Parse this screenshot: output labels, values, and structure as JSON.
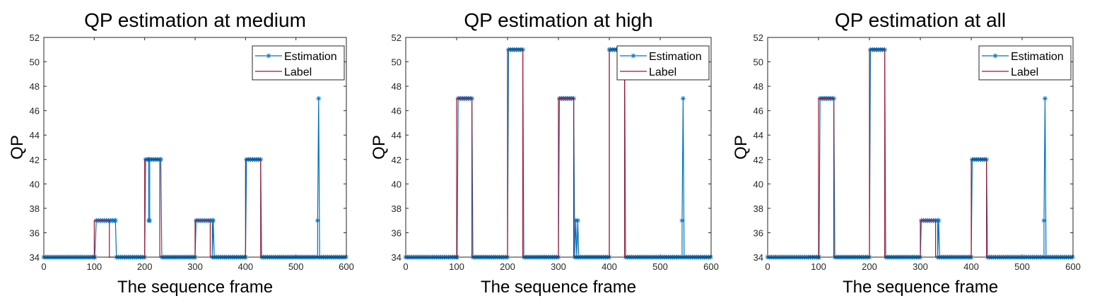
{
  "colors": {
    "estimation": "#0072BD",
    "label": "#A2142F",
    "axis": "#262626"
  },
  "chart_data": [
    {
      "type": "line",
      "title": "QP estimation at medium",
      "xlabel": "The sequence frame",
      "ylabel": "QP",
      "xlim": [
        0,
        600
      ],
      "ylim": [
        34,
        52
      ],
      "xticks": [
        "0",
        "100",
        "200",
        "300",
        "400",
        "500",
        "600"
      ],
      "yticks": [
        "34",
        "36",
        "38",
        "40",
        "42",
        "44",
        "46",
        "48",
        "50",
        "52"
      ],
      "legend_position": "top-right",
      "legend": [
        "Estimation",
        "Label"
      ],
      "series": [
        {
          "name": "Label",
          "style": "line",
          "x": [
            0,
            100,
            100,
            130,
            130,
            200,
            200,
            230,
            230,
            300,
            300,
            330,
            330,
            400,
            400,
            430,
            430,
            600
          ],
          "y": [
            34,
            34,
            37,
            37,
            34,
            34,
            42,
            42,
            34,
            34,
            37,
            37,
            34,
            34,
            42,
            42,
            34,
            34
          ]
        },
        {
          "name": "Estimation",
          "style": "line-star",
          "x": [
            0,
            101,
            104,
            142,
            144,
            200,
            202,
            208,
            208,
            210,
            210,
            232,
            234,
            300,
            302,
            334,
            334,
            336,
            338,
            400,
            402,
            430,
            432,
            543,
            543,
            545,
            547,
            600
          ],
          "y": [
            34,
            34,
            37,
            37,
            34,
            34,
            42,
            42,
            37,
            37,
            42,
            42,
            34,
            34,
            37,
            37,
            34,
            37,
            34,
            34,
            42,
            42,
            34,
            34,
            37,
            47,
            34,
            34
          ]
        }
      ]
    },
    {
      "type": "line",
      "title": "QP estimation at high",
      "xlabel": "The sequence frame",
      "ylabel": "QP",
      "xlim": [
        0,
        600
      ],
      "ylim": [
        34,
        52
      ],
      "xticks": [
        "0",
        "100",
        "200",
        "300",
        "400",
        "500",
        "600"
      ],
      "yticks": [
        "34",
        "36",
        "38",
        "40",
        "42",
        "44",
        "46",
        "48",
        "50",
        "52"
      ],
      "legend_position": "top-right",
      "legend": [
        "Estimation",
        "Label"
      ],
      "series": [
        {
          "name": "Label",
          "style": "line",
          "x": [
            0,
            100,
            100,
            130,
            130,
            200,
            200,
            230,
            230,
            300,
            300,
            330,
            330,
            400,
            400,
            430,
            430,
            600
          ],
          "y": [
            34,
            34,
            47,
            47,
            34,
            34,
            51,
            51,
            34,
            34,
            47,
            47,
            34,
            34,
            51,
            51,
            34,
            34
          ]
        },
        {
          "name": "Estimation",
          "style": "line-star",
          "x": [
            0,
            101,
            103,
            130,
            132,
            200,
            202,
            230,
            232,
            300,
            302,
            330,
            332,
            334,
            336,
            338,
            340,
            400,
            400,
            402,
            430,
            432,
            543,
            543,
            545,
            547,
            600
          ],
          "y": [
            34,
            34,
            47,
            47,
            34,
            34,
            51,
            51,
            34,
            34,
            47,
            47,
            34,
            37,
            34,
            37,
            34,
            34,
            51,
            51,
            51,
            34,
            34,
            37,
            47,
            34,
            34
          ]
        }
      ]
    },
    {
      "type": "line",
      "title": "QP estimation at all",
      "xlabel": "The sequence frame",
      "ylabel": "QP",
      "xlim": [
        0,
        600
      ],
      "ylim": [
        34,
        52
      ],
      "xticks": [
        "0",
        "100",
        "200",
        "300",
        "400",
        "500",
        "600"
      ],
      "yticks": [
        "34",
        "36",
        "38",
        "40",
        "42",
        "44",
        "46",
        "48",
        "50",
        "52"
      ],
      "legend_position": "top-right",
      "legend": [
        "Estimation",
        "Label"
      ],
      "series": [
        {
          "name": "Label",
          "style": "line",
          "x": [
            0,
            100,
            100,
            130,
            130,
            200,
            200,
            230,
            230,
            300,
            300,
            330,
            330,
            400,
            400,
            430,
            430,
            600
          ],
          "y": [
            34,
            34,
            47,
            47,
            34,
            34,
            51,
            51,
            34,
            34,
            37,
            37,
            34,
            34,
            42,
            42,
            34,
            34
          ]
        },
        {
          "name": "Estimation",
          "style": "line-star",
          "x": [
            0,
            101,
            103,
            130,
            132,
            200,
            202,
            230,
            232,
            300,
            302,
            334,
            334,
            336,
            338,
            400,
            402,
            430,
            432,
            543,
            543,
            545,
            547,
            600
          ],
          "y": [
            34,
            34,
            47,
            47,
            34,
            34,
            51,
            51,
            34,
            34,
            37,
            37,
            34,
            37,
            34,
            34,
            42,
            42,
            34,
            34,
            37,
            47,
            34,
            34
          ]
        }
      ]
    }
  ]
}
